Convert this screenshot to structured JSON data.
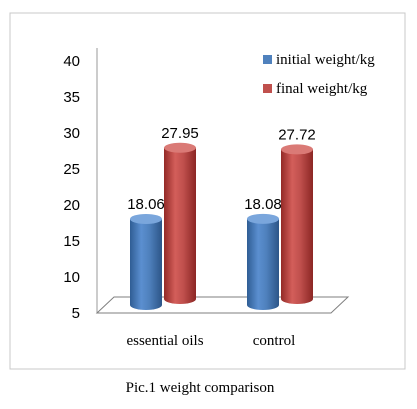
{
  "chart_data": {
    "type": "bar",
    "title": "",
    "caption": "Pic.1 weight comparison",
    "categories": [
      "essential oils",
      "control"
    ],
    "series": [
      {
        "name": "initial weight/kg",
        "values": [
          18.06,
          18.08
        ],
        "color": "#4f81bd"
      },
      {
        "name": "final weight/kg",
        "values": [
          27.95,
          27.72
        ],
        "color": "#c0504d"
      }
    ],
    "y_ticks": [
      "5",
      "10",
      "15",
      "20",
      "25",
      "30",
      "35",
      "40"
    ],
    "ylim": [
      5,
      40
    ],
    "legend_position": "top-right",
    "grid": false
  }
}
